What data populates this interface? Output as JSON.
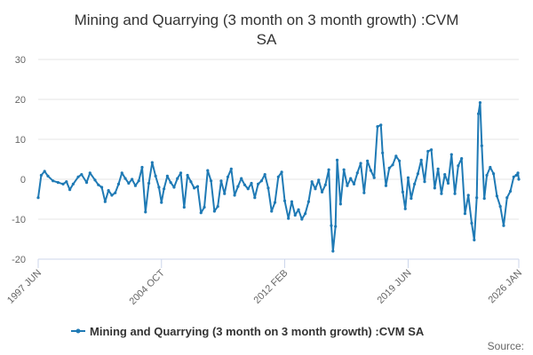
{
  "chart_data": {
    "type": "line",
    "title": "Mining and Quarrying (3 month on 3 month growth) :CVM SA",
    "title_lines": [
      "Mining and Quarrying (3 month on 3 month growth) :CVM",
      "SA"
    ],
    "xlabel": "",
    "ylabel": "",
    "x_range": [
      1997.42,
      2026.0
    ],
    "ylim": [
      -20,
      30
    ],
    "y_ticks": [
      30,
      20,
      10,
      0,
      -10,
      -20
    ],
    "x_ticks": [
      {
        "label": "1997 JUN",
        "value": 1997.42
      },
      {
        "label": "2004 OCT",
        "value": 2004.75
      },
      {
        "label": "2012 FEB",
        "value": 2012.08
      },
      {
        "label": "2019 JUN",
        "value": 2019.42
      },
      {
        "label": "2026 JAN",
        "value": 2026.0
      }
    ],
    "grid": true,
    "legend_position": "bottom-center",
    "series": [
      {
        "name": "Mining and Quarrying (3 month on 3 month growth) :CVM SA",
        "color": "#1f7ab5",
        "points": [
          [
            1997.42,
            -4.6
          ],
          [
            1997.6,
            1.0
          ],
          [
            1997.8,
            2.0
          ],
          [
            1998.0,
            0.8
          ],
          [
            1998.3,
            -0.4
          ],
          [
            1998.6,
            -0.8
          ],
          [
            1998.9,
            -1.2
          ],
          [
            1999.1,
            -0.6
          ],
          [
            1999.3,
            -2.6
          ],
          [
            1999.5,
            -1.2
          ],
          [
            1999.8,
            0.6
          ],
          [
            2000.0,
            1.2
          ],
          [
            2000.3,
            -0.8
          ],
          [
            2000.5,
            1.6
          ],
          [
            2000.8,
            -0.2
          ],
          [
            2001.0,
            -1.4
          ],
          [
            2001.2,
            -2.0
          ],
          [
            2001.4,
            -5.6
          ],
          [
            2001.6,
            -2.8
          ],
          [
            2001.8,
            -4.0
          ],
          [
            2002.0,
            -3.4
          ],
          [
            2002.2,
            -1.2
          ],
          [
            2002.4,
            1.6
          ],
          [
            2002.6,
            0.2
          ],
          [
            2002.8,
            -1.0
          ],
          [
            2003.0,
            0.0
          ],
          [
            2003.2,
            -1.6
          ],
          [
            2003.4,
            -0.4
          ],
          [
            2003.6,
            3.0
          ],
          [
            2003.8,
            -8.2
          ],
          [
            2004.0,
            -1.0
          ],
          [
            2004.2,
            4.2
          ],
          [
            2004.4,
            0.8
          ],
          [
            2004.6,
            -2.0
          ],
          [
            2004.75,
            -5.8
          ],
          [
            2004.9,
            -2.4
          ],
          [
            2005.1,
            0.8
          ],
          [
            2005.3,
            -0.8
          ],
          [
            2005.5,
            -2.0
          ],
          [
            2005.7,
            0.2
          ],
          [
            2005.9,
            1.6
          ],
          [
            2006.1,
            -7.0
          ],
          [
            2006.3,
            1.0
          ],
          [
            2006.5,
            -0.6
          ],
          [
            2006.7,
            -2.2
          ],
          [
            2006.9,
            -1.8
          ],
          [
            2007.1,
            -8.4
          ],
          [
            2007.3,
            -7.0
          ],
          [
            2007.5,
            2.2
          ],
          [
            2007.7,
            -0.4
          ],
          [
            2007.9,
            -8.0
          ],
          [
            2008.1,
            -6.8
          ],
          [
            2008.3,
            -0.4
          ],
          [
            2008.5,
            -3.6
          ],
          [
            2008.7,
            0.6
          ],
          [
            2008.9,
            2.6
          ],
          [
            2009.1,
            -4.0
          ],
          [
            2009.3,
            -1.8
          ],
          [
            2009.5,
            0.2
          ],
          [
            2009.7,
            -1.4
          ],
          [
            2009.9,
            -2.4
          ],
          [
            2010.1,
            -1.0
          ],
          [
            2010.3,
            -4.6
          ],
          [
            2010.5,
            -1.2
          ],
          [
            2010.7,
            -0.4
          ],
          [
            2010.9,
            1.2
          ],
          [
            2011.1,
            -2.2
          ],
          [
            2011.3,
            -8.0
          ],
          [
            2011.5,
            -5.8
          ],
          [
            2011.7,
            0.6
          ],
          [
            2011.9,
            1.8
          ],
          [
            2012.08,
            -5.4
          ],
          [
            2012.3,
            -9.8
          ],
          [
            2012.5,
            -5.6
          ],
          [
            2012.7,
            -9.0
          ],
          [
            2012.9,
            -7.6
          ],
          [
            2013.1,
            -10.0
          ],
          [
            2013.3,
            -8.6
          ],
          [
            2013.5,
            -5.6
          ],
          [
            2013.7,
            -0.6
          ],
          [
            2013.9,
            -2.4
          ],
          [
            2014.1,
            -0.2
          ],
          [
            2014.3,
            -3.2
          ],
          [
            2014.5,
            -1.4
          ],
          [
            2014.7,
            2.4
          ],
          [
            2014.85,
            -11.6
          ],
          [
            2014.95,
            -18.0
          ],
          [
            2015.1,
            -11.8
          ],
          [
            2015.2,
            4.8
          ],
          [
            2015.4,
            -6.2
          ],
          [
            2015.6,
            2.4
          ],
          [
            2015.8,
            -1.6
          ],
          [
            2016.0,
            0.2
          ],
          [
            2016.2,
            -1.2
          ],
          [
            2016.4,
            1.6
          ],
          [
            2016.6,
            4.0
          ],
          [
            2016.8,
            -3.4
          ],
          [
            2017.0,
            4.6
          ],
          [
            2017.2,
            2.2
          ],
          [
            2017.4,
            0.4
          ],
          [
            2017.6,
            13.2
          ],
          [
            2017.8,
            13.6
          ],
          [
            2017.9,
            6.6
          ],
          [
            2018.1,
            -1.6
          ],
          [
            2018.3,
            2.8
          ],
          [
            2018.5,
            3.6
          ],
          [
            2018.7,
            5.8
          ],
          [
            2018.9,
            4.6
          ],
          [
            2019.1,
            -3.2
          ],
          [
            2019.25,
            -7.4
          ],
          [
            2019.42,
            0.4
          ],
          [
            2019.6,
            -4.8
          ],
          [
            2019.8,
            -1.2
          ],
          [
            2020.0,
            1.4
          ],
          [
            2020.2,
            4.8
          ],
          [
            2020.4,
            -0.6
          ],
          [
            2020.6,
            7.0
          ],
          [
            2020.8,
            7.4
          ],
          [
            2021.0,
            -2.2
          ],
          [
            2021.2,
            2.6
          ],
          [
            2021.4,
            -3.6
          ],
          [
            2021.6,
            1.2
          ],
          [
            2021.8,
            -1.0
          ],
          [
            2022.0,
            6.2
          ],
          [
            2022.2,
            -3.6
          ],
          [
            2022.4,
            3.4
          ],
          [
            2022.6,
            5.2
          ],
          [
            2022.8,
            -8.6
          ],
          [
            2023.0,
            -4.0
          ],
          [
            2023.2,
            -11.0
          ],
          [
            2023.35,
            -15.2
          ],
          [
            2023.5,
            -4.6
          ],
          [
            2023.6,
            16.4
          ],
          [
            2023.7,
            19.2
          ],
          [
            2023.8,
            8.4
          ],
          [
            2023.95,
            -4.8
          ],
          [
            2024.1,
            1.0
          ],
          [
            2024.3,
            3.0
          ],
          [
            2024.5,
            1.4
          ],
          [
            2024.7,
            -4.2
          ],
          [
            2024.9,
            -6.8
          ],
          [
            2025.1,
            -11.6
          ],
          [
            2025.3,
            -4.6
          ],
          [
            2025.5,
            -3.0
          ],
          [
            2025.7,
            0.6
          ],
          [
            2025.85,
            1.0
          ],
          [
            2025.95,
            1.6
          ],
          [
            2026.0,
            0.0
          ]
        ]
      }
    ]
  },
  "credit": {
    "label": "Source:"
  }
}
